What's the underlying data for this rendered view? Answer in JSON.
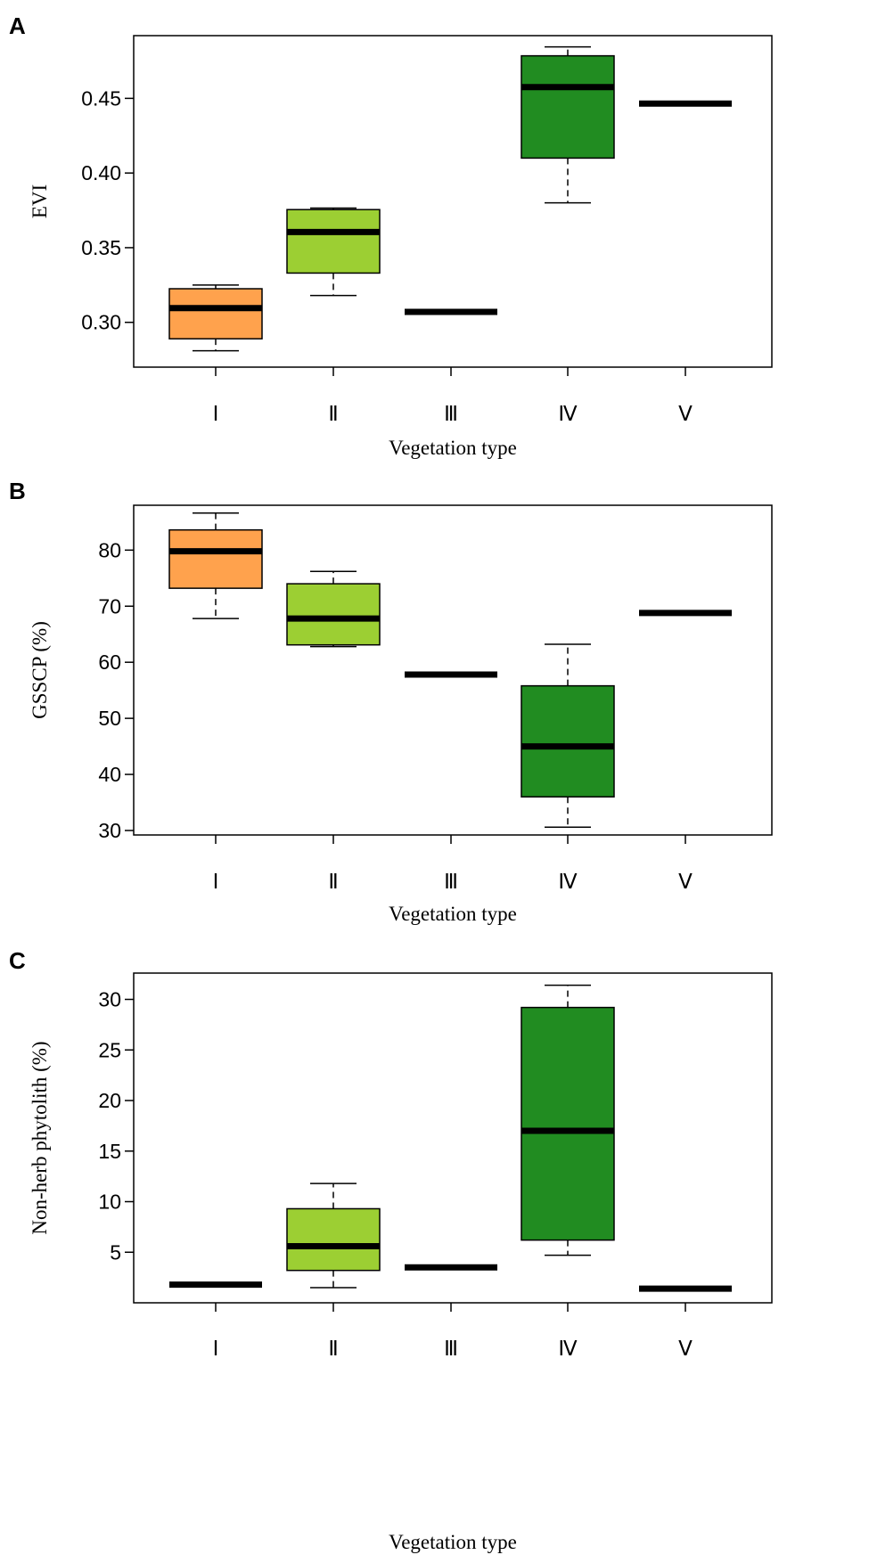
{
  "colors": {
    "type_I": "#ffa24d",
    "type_II": "#9ccf33",
    "type_IV": "#218c21",
    "line": "#000000"
  },
  "chart_data": [
    {
      "type": "box",
      "panel_label": "A",
      "title": "",
      "xlabel": "Vegetation type",
      "ylabel": "EVI",
      "categories": [
        "Ⅰ",
        "Ⅱ",
        "Ⅲ",
        "Ⅳ",
        "Ⅴ"
      ],
      "ylim": [
        0.27,
        0.492
      ],
      "yticks": [
        0.3,
        0.35,
        0.4,
        0.45
      ],
      "ytick_labels": [
        "0.30",
        "0.35",
        "0.40",
        "0.45"
      ],
      "boxes": [
        {
          "category": "Ⅰ",
          "min": 0.281,
          "q1": 0.289,
          "median": 0.3095,
          "q3": 0.3225,
          "max": 0.325,
          "color": "#ffa24d"
        },
        {
          "category": "Ⅱ",
          "min": 0.318,
          "q1": 0.333,
          "median": 0.3605,
          "q3": 0.3755,
          "max": 0.3765,
          "color": "#9ccf33"
        },
        {
          "category": "Ⅲ",
          "min": 0.307,
          "q1": 0.307,
          "median": 0.307,
          "q3": 0.307,
          "max": 0.307,
          "color": "#218c21"
        },
        {
          "category": "Ⅳ",
          "min": 0.38,
          "q1": 0.41,
          "median": 0.4575,
          "q3": 0.4785,
          "max": 0.4845,
          "color": "#218c21"
        },
        {
          "category": "Ⅴ",
          "min": 0.4465,
          "q1": 0.4465,
          "median": 0.4465,
          "q3": 0.4465,
          "max": 0.4465,
          "color": "#218c21"
        }
      ]
    },
    {
      "type": "box",
      "panel_label": "B",
      "title": "",
      "xlabel": "Vegetation type",
      "ylabel": "GSSCP (%)",
      "categories": [
        "Ⅰ",
        "Ⅱ",
        "Ⅲ",
        "Ⅳ",
        "Ⅴ"
      ],
      "ylim": [
        29.2,
        88.0
      ],
      "yticks": [
        30,
        40,
        50,
        60,
        70,
        80
      ],
      "ytick_labels": [
        "30",
        "40",
        "50",
        "60",
        "70",
        "80"
      ],
      "boxes": [
        {
          "category": "Ⅰ",
          "min": 67.8,
          "q1": 73.2,
          "median": 79.8,
          "q3": 83.6,
          "max": 86.6,
          "color": "#ffa24d"
        },
        {
          "category": "Ⅱ",
          "min": 62.8,
          "q1": 63.1,
          "median": 67.8,
          "q3": 74.0,
          "max": 76.2,
          "color": "#9ccf33"
        },
        {
          "category": "Ⅲ",
          "min": 57.8,
          "q1": 57.8,
          "median": 57.8,
          "q3": 57.8,
          "max": 57.8,
          "color": "#218c21"
        },
        {
          "category": "Ⅳ",
          "min": 30.6,
          "q1": 36.0,
          "median": 45.0,
          "q3": 55.8,
          "max": 63.2,
          "color": "#218c21"
        },
        {
          "category": "Ⅴ",
          "min": 68.8,
          "q1": 68.8,
          "median": 68.8,
          "q3": 68.8,
          "max": 68.8,
          "color": "#218c21"
        }
      ]
    },
    {
      "type": "box",
      "panel_label": "C",
      "title": "",
      "xlabel": "Vegetation type",
      "ylabel": "Non-herb phytolith (%)",
      "categories": [
        "Ⅰ",
        "Ⅱ",
        "Ⅲ",
        "Ⅳ",
        "Ⅴ"
      ],
      "ylim": [
        0.0,
        32.6
      ],
      "yticks": [
        5,
        10,
        15,
        20,
        25,
        30
      ],
      "ytick_labels": [
        "5",
        "10",
        "15",
        "20",
        "25",
        "30"
      ],
      "boxes": [
        {
          "category": "Ⅰ",
          "min": 1.8,
          "q1": 1.8,
          "median": 1.8,
          "q3": 1.8,
          "max": 1.8,
          "color": "#ffa24d"
        },
        {
          "category": "Ⅱ",
          "min": 1.5,
          "q1": 3.2,
          "median": 5.6,
          "q3": 9.3,
          "max": 11.8,
          "color": "#9ccf33"
        },
        {
          "category": "Ⅲ",
          "min": 3.5,
          "q1": 3.5,
          "median": 3.5,
          "q3": 3.5,
          "max": 3.5,
          "color": "#218c21"
        },
        {
          "category": "Ⅳ",
          "min": 4.7,
          "q1": 6.2,
          "median": 17.0,
          "q3": 29.2,
          "max": 31.4,
          "color": "#218c21"
        },
        {
          "category": "Ⅴ",
          "min": 1.4,
          "q1": 1.4,
          "median": 1.4,
          "q3": 1.4,
          "max": 1.4,
          "color": "#218c21"
        }
      ]
    }
  ]
}
